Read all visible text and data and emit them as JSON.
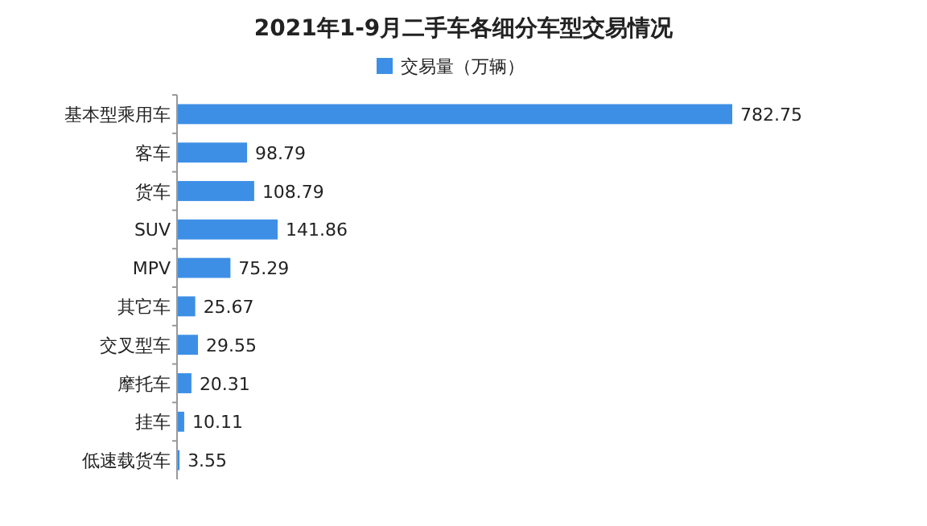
{
  "chart_data": {
    "type": "bar",
    "orientation": "horizontal",
    "title": "2021年1-9月二手车各细分车型交易情况",
    "categories": [
      "基本型乘用车",
      "客车",
      "货车",
      "SUV",
      "MPV",
      "其它车",
      "交叉型车",
      "摩托车",
      "挂车",
      "低速载货车"
    ],
    "series": [
      {
        "name": "交易量（万辆）",
        "color": "#3d8fe6",
        "values": [
          782.75,
          98.79,
          108.79,
          141.86,
          75.29,
          25.67,
          29.55,
          20.31,
          10.11,
          3.55
        ]
      }
    ],
    "data_labels": true,
    "legend": "top"
  }
}
